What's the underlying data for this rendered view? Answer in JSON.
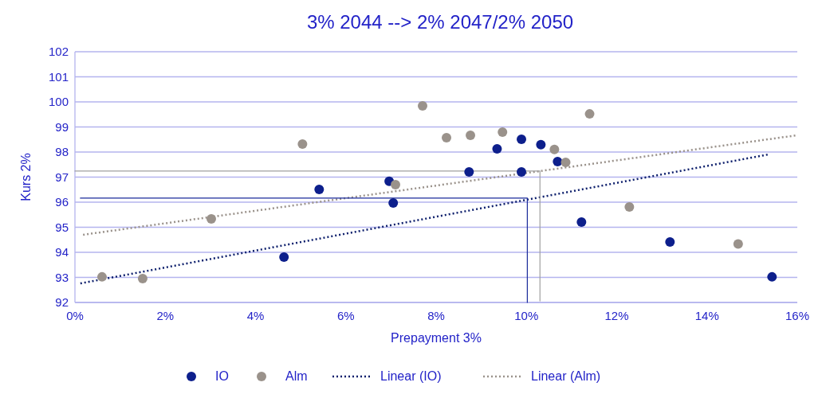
{
  "chart_data": {
    "type": "scatter",
    "title": "3% 2044 --> 2% 2047/2% 2050",
    "xlabel": "Prepayment 3%",
    "ylabel": "Kurs 2%",
    "xlim": [
      0,
      16
    ],
    "xticks": [
      {
        "value": 0,
        "label": "0%"
      },
      {
        "value": 2,
        "label": "2%"
      },
      {
        "value": 4,
        "label": "4%"
      },
      {
        "value": 6,
        "label": "6%"
      },
      {
        "value": 8,
        "label": "8%"
      },
      {
        "value": 10,
        "label": "10%"
      },
      {
        "value": 12,
        "label": "12%"
      },
      {
        "value": 14,
        "label": "14%"
      },
      {
        "value": 16,
        "label": "16%"
      }
    ],
    "ylim": [
      92,
      102
    ],
    "yticks": [
      92,
      93,
      94,
      95,
      96,
      97,
      98,
      99,
      100,
      101,
      102
    ],
    "grid": "y",
    "legend": "bottom",
    "series": [
      {
        "name": "IO",
        "marker": "circle",
        "color": "#0d1f8c",
        "x": [
          4.63,
          5.41,
          6.96,
          7.05,
          8.73,
          9.35,
          9.89,
          9.89,
          10.32,
          10.69,
          11.22,
          13.18,
          15.44
        ],
        "values": [
          93.81,
          96.51,
          96.83,
          95.97,
          97.21,
          98.13,
          98.51,
          97.21,
          98.29,
          97.62,
          95.21,
          94.41,
          93.02
        ]
      },
      {
        "name": "Alm",
        "marker": "circle",
        "color": "#9a928b",
        "x": [
          0.6,
          1.5,
          3.02,
          5.04,
          7.1,
          7.7,
          8.23,
          8.76,
          9.47,
          10.62,
          10.87,
          11.4,
          12.28,
          14.69
        ],
        "values": [
          93.02,
          92.95,
          95.33,
          98.32,
          96.7,
          99.84,
          98.57,
          98.67,
          98.79,
          98.1,
          97.59,
          99.52,
          95.81,
          94.33
        ]
      },
      {
        "name": "Linear (IO)",
        "type": "line",
        "line_style": "dotted",
        "color": "#0d1f6c",
        "x": [
          0.12,
          15.35
        ],
        "values": [
          92.76,
          97.9
        ]
      },
      {
        "name": "Linear (Alm)",
        "type": "line",
        "line_style": "dotted",
        "color": "#9a928b",
        "x": [
          0.18,
          16
        ],
        "values": [
          94.7,
          98.67
        ]
      },
      {
        "type": "line",
        "line_style": "solid",
        "color": "#1a2a9a",
        "x": [
          0.12,
          10.02,
          10.02
        ],
        "values": [
          96.16,
          96.16,
          92
        ]
      },
      {
        "type": "line",
        "line_style": "solid",
        "color": "#a0a0a0",
        "x": [
          0,
          10.3,
          10.3
        ],
        "values": [
          97.24,
          97.24,
          92.06
        ]
      }
    ]
  }
}
